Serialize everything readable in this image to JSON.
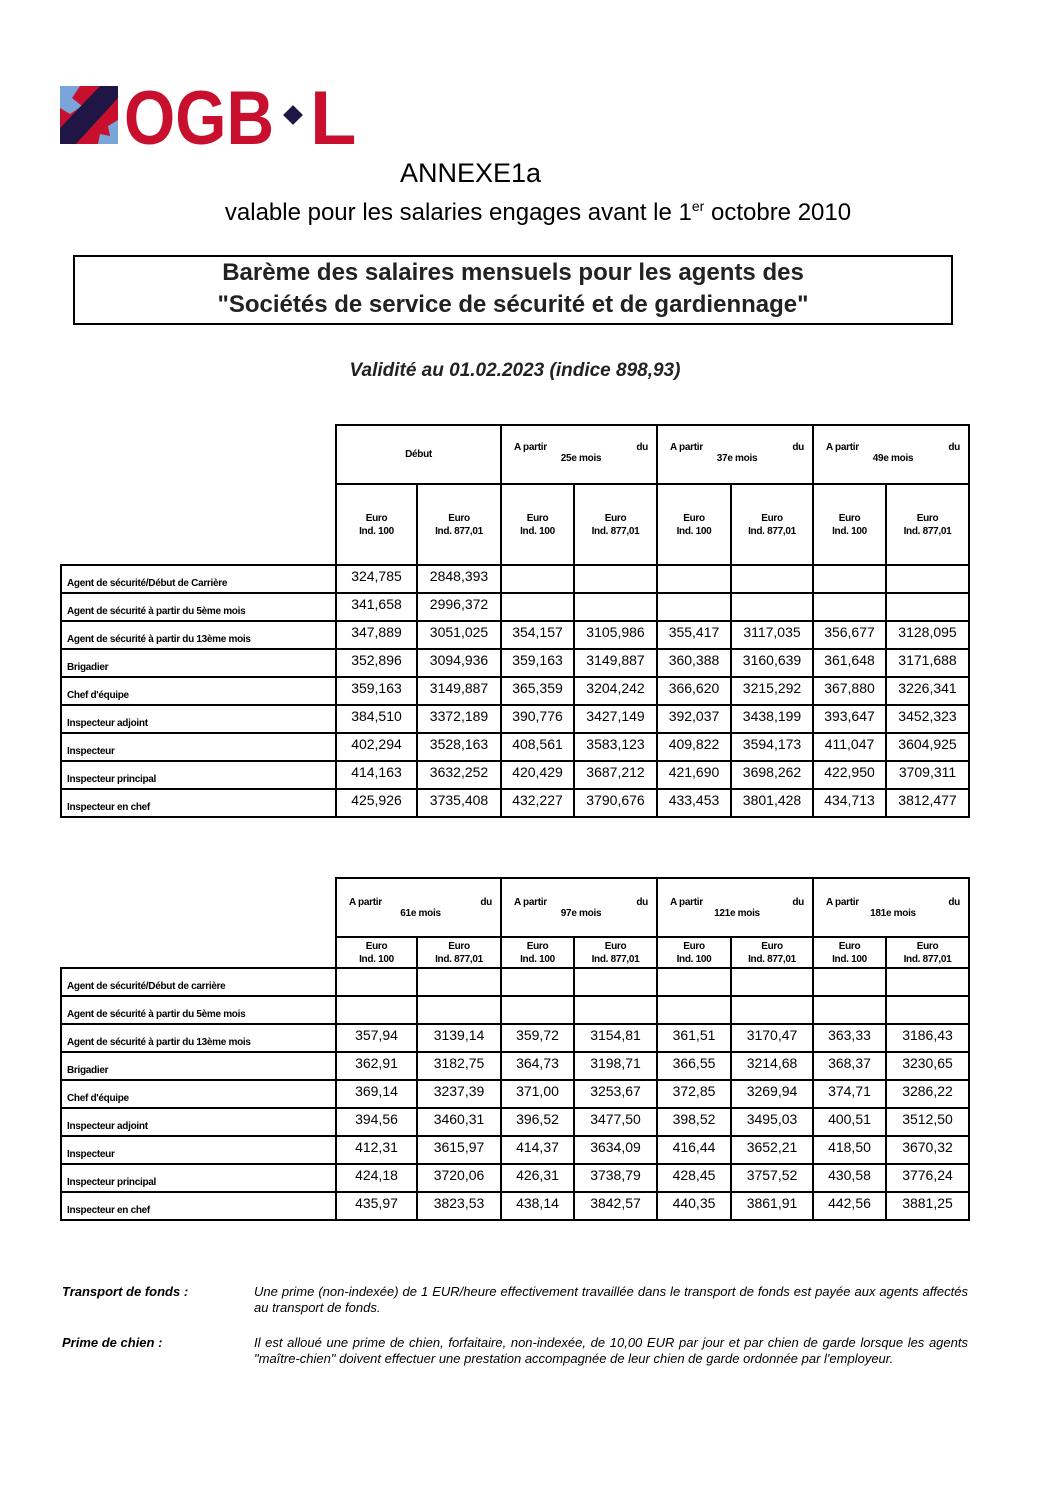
{
  "logo": {
    "text": "OGB·L",
    "colors": {
      "red": "#c8102e",
      "navy": "#1f1646",
      "lightblue": "#7aa5d8"
    }
  },
  "header": {
    "annexe": "ANNEXE1a",
    "valable_before": "valable pour les salaries engages avant le 1",
    "valable_sup": "er",
    "valable_after": " octobre 2010",
    "title_line1": "Barème des salaires mensuels pour les agents des",
    "title_line2": "\"Sociétés de service de sécurité et de gardiennage\"",
    "validity": "Validité au 01.02.2023 (indice 898,93)"
  },
  "units": {
    "line1": "Euro",
    "ind100": "Ind. 100",
    "ind877": "Ind. 877,01"
  },
  "tables": [
    {
      "groups": [
        {
          "single": "Début"
        },
        {
          "left": "A partir",
          "right": "du",
          "bottom": "25e mois"
        },
        {
          "left": "A partir",
          "right": "du",
          "bottom": "37e mois"
        },
        {
          "left": "A partir",
          "right": "du",
          "bottom": "49e mois"
        }
      ],
      "rows": [
        {
          "label": "Agent de sécurité/Début de Carrière",
          "values": [
            "324,785",
            "2848,393",
            "",
            "",
            "",
            "",
            "",
            ""
          ]
        },
        {
          "label": "Agent de sécurité à partir du 5ème mois",
          "values": [
            "341,658",
            "2996,372",
            "",
            "",
            "",
            "",
            "",
            ""
          ]
        },
        {
          "label": "Agent de sécurité à partir du 13ème mois",
          "values": [
            "347,889",
            "3051,025",
            "354,157",
            "3105,986",
            "355,417",
            "3117,035",
            "356,677",
            "3128,095"
          ]
        },
        {
          "label": "Brigadier",
          "values": [
            "352,896",
            "3094,936",
            "359,163",
            "3149,887",
            "360,388",
            "3160,639",
            "361,648",
            "3171,688"
          ]
        },
        {
          "label": "Chef d'équipe",
          "values": [
            "359,163",
            "3149,887",
            "365,359",
            "3204,242",
            "366,620",
            "3215,292",
            "367,880",
            "3226,341"
          ]
        },
        {
          "label": "Inspecteur adjoint",
          "values": [
            "384,510",
            "3372,189",
            "390,776",
            "3427,149",
            "392,037",
            "3438,199",
            "393,647",
            "3452,323"
          ]
        },
        {
          "label": "Inspecteur",
          "values": [
            "402,294",
            "3528,163",
            "408,561",
            "3583,123",
            "409,822",
            "3594,173",
            "411,047",
            "3604,925"
          ]
        },
        {
          "label": "Inspecteur principal",
          "values": [
            "414,163",
            "3632,252",
            "420,429",
            "3687,212",
            "421,690",
            "3698,262",
            "422,950",
            "3709,311"
          ]
        },
        {
          "label": "Inspecteur en chef",
          "values": [
            "425,926",
            "3735,408",
            "432,227",
            "3790,676",
            "433,453",
            "3801,428",
            "434,713",
            "3812,477"
          ]
        }
      ]
    },
    {
      "groups": [
        {
          "left": "A partir",
          "right": "du",
          "bottom": "61e mois"
        },
        {
          "left": "A partir",
          "right": "du",
          "bottom": "97e mois"
        },
        {
          "left": "A partir",
          "right": "du",
          "bottom": "121e mois"
        },
        {
          "left": "A partir",
          "right": "du",
          "bottom": "181e mois"
        }
      ],
      "rows": [
        {
          "label": "Agent de sécurité/Début de carrière",
          "values": [
            "",
            "",
            "",
            "",
            "",
            "",
            "",
            ""
          ]
        },
        {
          "label": "Agent de sécurité à partir du 5ème mois",
          "values": [
            "",
            "",
            "",
            "",
            "",
            "",
            "",
            ""
          ]
        },
        {
          "label": "Agent de sécurité à partir du 13ème mois",
          "values": [
            "357,94",
            "3139,14",
            "359,72",
            "3154,81",
            "361,51",
            "3170,47",
            "363,33",
            "3186,43"
          ]
        },
        {
          "label": "Brigadier",
          "values": [
            "362,91",
            "3182,75",
            "364,73",
            "3198,71",
            "366,55",
            "3214,68",
            "368,37",
            "3230,65"
          ]
        },
        {
          "label": "Chef d'équipe",
          "values": [
            "369,14",
            "3237,39",
            "371,00",
            "3253,67",
            "372,85",
            "3269,94",
            "374,71",
            "3286,22"
          ]
        },
        {
          "label": "Inspecteur adjoint",
          "values": [
            "394,56",
            "3460,31",
            "396,52",
            "3477,50",
            "398,52",
            "3495,03",
            "400,51",
            "3512,50"
          ]
        },
        {
          "label": "Inspecteur",
          "values": [
            "412,31",
            "3615,97",
            "414,37",
            "3634,09",
            "416,44",
            "3652,21",
            "418,50",
            "3670,32"
          ]
        },
        {
          "label": "Inspecteur principal",
          "values": [
            "424,18",
            "3720,06",
            "426,31",
            "3738,79",
            "428,45",
            "3757,52",
            "430,58",
            "3776,24"
          ]
        },
        {
          "label": "Inspecteur en chef",
          "values": [
            "435,97",
            "3823,53",
            "438,14",
            "3842,57",
            "440,35",
            "3861,91",
            "442,56",
            "3881,25"
          ]
        }
      ]
    }
  ],
  "notes": [
    {
      "label": "Transport de fonds :",
      "text": "Une prime (non-indexée) de 1 EUR/heure effectivement travaillée dans le transport de fonds est payée aux agents affectés au transport de fonds."
    },
    {
      "label": "Prime de chien :",
      "text": "Il est alloué une prime de chien, forfaitaire, non-indexée, de 10,00 EUR par jour et par chien de garde lorsque les agents \"maître-chien\" doivent effectuer une prestation accompagnée de leur chien de garde ordonnée par l'employeur."
    }
  ]
}
